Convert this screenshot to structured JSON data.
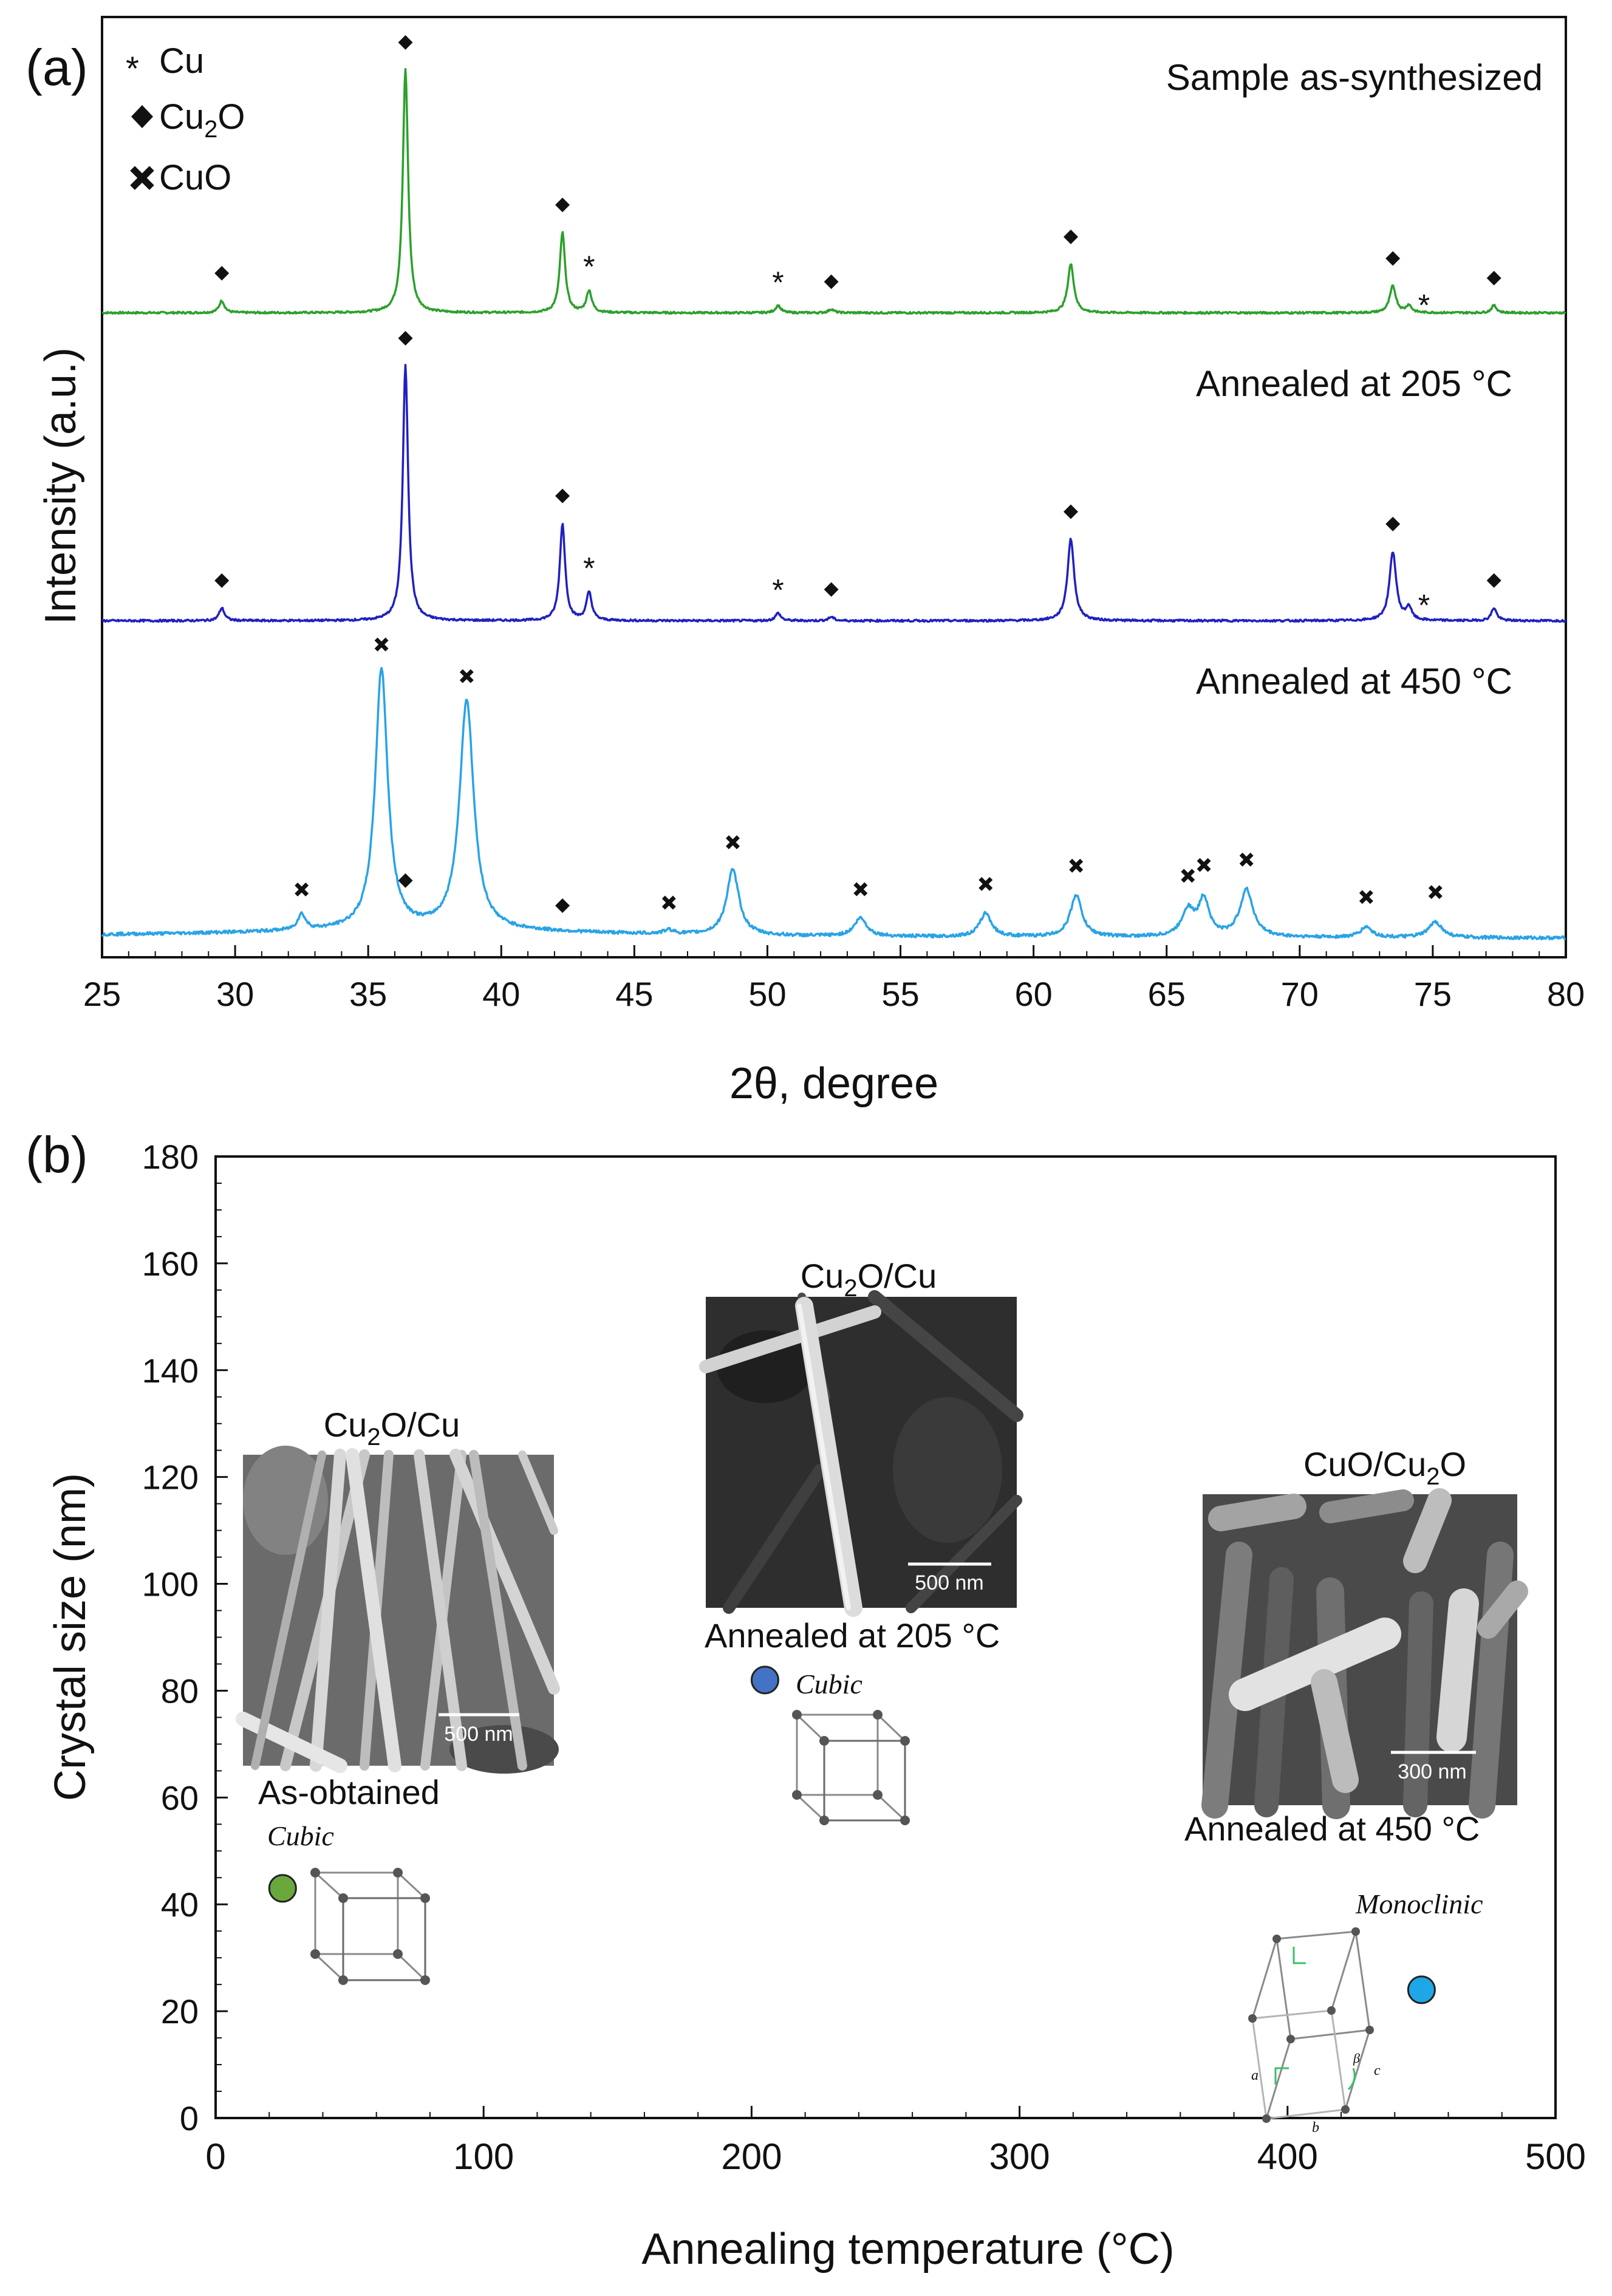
{
  "colors": {
    "green": "#2ca02c",
    "blue": "#2020c0",
    "cyan": "#29a3e6",
    "green_dot": "#6aa83e",
    "blue_dot": "#4472c4",
    "cyan_dot": "#1ea7e8",
    "ink": "#111111"
  },
  "chart_data": [
    {
      "type": "line",
      "panel": "(a)",
      "xlabel": "2θ, degree",
      "ylabel": "Intensity (a.u.)",
      "xlim": [
        25,
        80
      ],
      "xticks": [
        25,
        30,
        35,
        40,
        45,
        50,
        55,
        60,
        65,
        70,
        75,
        80
      ],
      "legend": [
        {
          "symbol": "*",
          "label": "Cu",
          "label_main": "Cu",
          "label_sub": ""
        },
        {
          "symbol": "diamond",
          "label": "Cu2O",
          "label_main": "Cu",
          "label_sub": "2",
          "label_tail": "O"
        },
        {
          "symbol": "x",
          "label": "CuO",
          "label_main": "CuO",
          "label_sub": ""
        }
      ],
      "series": [
        {
          "name": "Sample as-synthesized",
          "color_key": "green",
          "peaks": [
            {
              "x": 29.5,
              "h": 0.05,
              "w": 0.12,
              "marker": "diamond"
            },
            {
              "x": 36.4,
              "h": 1.0,
              "w": 0.12,
              "marker": "diamond"
            },
            {
              "x": 42.3,
              "h": 0.33,
              "w": 0.12,
              "marker": "diamond"
            },
            {
              "x": 43.3,
              "h": 0.09,
              "w": 0.12,
              "marker": "*"
            },
            {
              "x": 50.4,
              "h": 0.03,
              "w": 0.12,
              "marker": "*"
            },
            {
              "x": 52.4,
              "h": 0.015,
              "w": 0.12,
              "marker": "diamond"
            },
            {
              "x": 61.4,
              "h": 0.2,
              "w": 0.14,
              "marker": "diamond"
            },
            {
              "x": 73.5,
              "h": 0.11,
              "w": 0.14,
              "marker": "diamond"
            },
            {
              "x": 74.1,
              "h": 0.03,
              "w": 0.12,
              "marker": "*"
            },
            {
              "x": 77.3,
              "h": 0.03,
              "w": 0.12,
              "marker": "diamond"
            }
          ]
        },
        {
          "name": "Annealed at 205 °C",
          "color_key": "blue",
          "peaks": [
            {
              "x": 29.5,
              "h": 0.05,
              "w": 0.12,
              "marker": "diamond"
            },
            {
              "x": 36.4,
              "h": 1.0,
              "w": 0.12,
              "marker": "diamond"
            },
            {
              "x": 42.3,
              "h": 0.38,
              "w": 0.12,
              "marker": "diamond"
            },
            {
              "x": 43.3,
              "h": 0.11,
              "w": 0.12,
              "marker": "*"
            },
            {
              "x": 50.4,
              "h": 0.03,
              "w": 0.12,
              "marker": "*"
            },
            {
              "x": 52.4,
              "h": 0.015,
              "w": 0.12,
              "marker": "diamond"
            },
            {
              "x": 61.4,
              "h": 0.32,
              "w": 0.15,
              "marker": "diamond"
            },
            {
              "x": 73.5,
              "h": 0.27,
              "w": 0.15,
              "marker": "diamond"
            },
            {
              "x": 74.1,
              "h": 0.05,
              "w": 0.12,
              "marker": "*"
            },
            {
              "x": 77.3,
              "h": 0.05,
              "w": 0.12,
              "marker": "diamond"
            }
          ]
        },
        {
          "name": "Annealed at 450 °C",
          "color_key": "cyan",
          "peaks": [
            {
              "x": 32.5,
              "h": 0.06,
              "w": 0.18,
              "marker": "x"
            },
            {
              "x": 35.5,
              "h": 1.0,
              "w": 0.28,
              "marker": "x"
            },
            {
              "x": 36.4,
              "h": 0.0,
              "w": 0.15,
              "marker": "diamond"
            },
            {
              "x": 38.7,
              "h": 0.88,
              "w": 0.32,
              "marker": "x"
            },
            {
              "x": 42.3,
              "h": 0.0,
              "w": 0.15,
              "marker": "diamond"
            },
            {
              "x": 46.3,
              "h": 0.015,
              "w": 0.22,
              "marker": "x"
            },
            {
              "x": 48.7,
              "h": 0.25,
              "w": 0.28,
              "marker": "x"
            },
            {
              "x": 53.5,
              "h": 0.07,
              "w": 0.28,
              "marker": "x"
            },
            {
              "x": 58.2,
              "h": 0.09,
              "w": 0.26,
              "marker": "x"
            },
            {
              "x": 61.6,
              "h": 0.16,
              "w": 0.26,
              "marker": "x"
            },
            {
              "x": 65.8,
              "h": 0.1,
              "w": 0.28,
              "marker": "x"
            },
            {
              "x": 66.4,
              "h": 0.14,
              "w": 0.24,
              "marker": "x"
            },
            {
              "x": 68.0,
              "h": 0.18,
              "w": 0.3,
              "marker": "x"
            },
            {
              "x": 72.5,
              "h": 0.04,
              "w": 0.26,
              "marker": "x"
            },
            {
              "x": 75.1,
              "h": 0.06,
              "w": 0.3,
              "marker": "x"
            }
          ]
        }
      ]
    },
    {
      "type": "scatter",
      "panel": "(b)",
      "xlabel": "Annealing temperature (°C)",
      "ylabel": "Crystal size (nm)",
      "xlim": [
        0,
        500
      ],
      "ylim": [
        0,
        180
      ],
      "xticks": [
        0,
        100,
        200,
        300,
        400,
        500
      ],
      "yticks": [
        0,
        20,
        40,
        60,
        80,
        100,
        120,
        140,
        160,
        180
      ],
      "points": [
        {
          "x": 25,
          "y": 43,
          "color_key": "green_dot",
          "label": "As-obtained",
          "phase": "Cu2O/Cu",
          "phase_main": "Cu",
          "phase_sub": "2",
          "phase_tail": "O/Cu",
          "structure": "Cubic",
          "scale_bar": "500 nm"
        },
        {
          "x": 205,
          "y": 82,
          "color_key": "blue_dot",
          "label": "Annealed at 205 °C",
          "phase": "Cu2O/Cu",
          "phase_main": "Cu",
          "phase_sub": "2",
          "phase_tail": "O/Cu",
          "structure": "Cubic",
          "scale_bar": "500 nm"
        },
        {
          "x": 450,
          "y": 24,
          "color_key": "cyan_dot",
          "label": "Annealed at 450 °C",
          "phase": "CuO/Cu2O",
          "phase_main": "CuO/Cu",
          "phase_sub": "2",
          "phase_tail": "O",
          "structure": "Monoclinic",
          "scale_bar": "300 nm"
        }
      ],
      "lattice_axis_labels": [
        "a",
        "b",
        "c",
        "β"
      ]
    }
  ]
}
